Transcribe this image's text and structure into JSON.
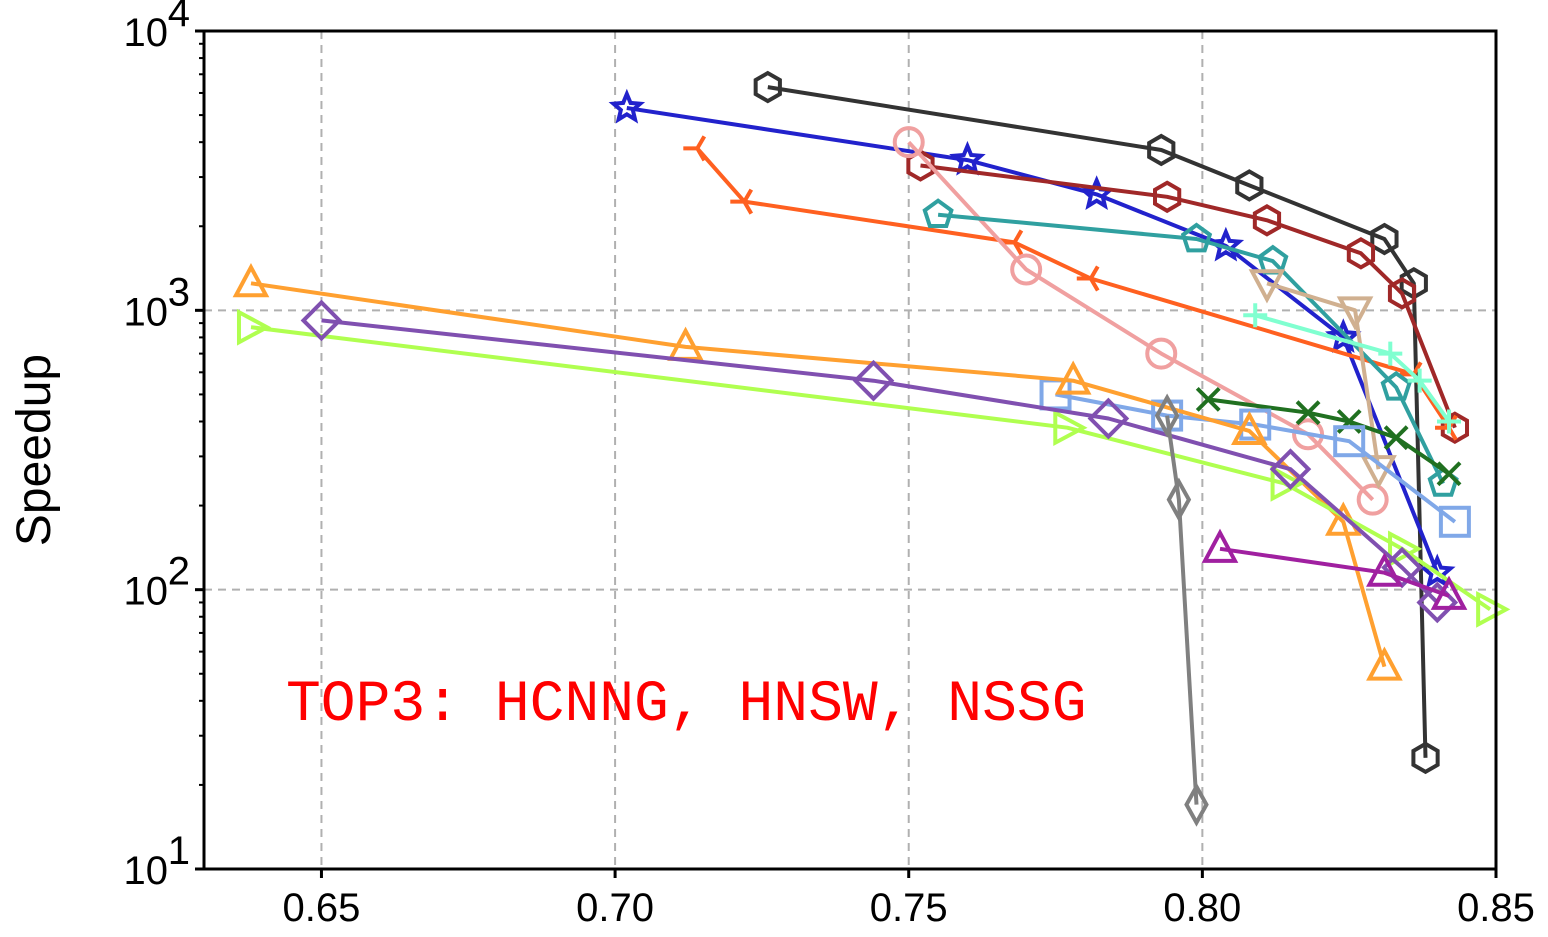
{
  "chart_data": {
    "type": "line",
    "title": "",
    "xlabel": "",
    "ylabel": "Speedup",
    "xlim": [
      0.63,
      0.85
    ],
    "ylim": [
      10,
      10000
    ],
    "yscale": "log",
    "grid": true,
    "x_ticks": [
      "0.65",
      "0.70",
      "0.75",
      "0.80",
      "0.85"
    ],
    "y_ticks": [
      {
        "base": "10",
        "exp": "1"
      },
      {
        "base": "10",
        "exp": "2"
      },
      {
        "base": "10",
        "exp": "3"
      },
      {
        "base": "10",
        "exp": "4"
      }
    ],
    "annotation": {
      "text": "TOP3: HCNNG, HNSW, NSSG",
      "color": "#ff0000"
    },
    "series": [
      {
        "marker": "hexagon",
        "color": "#333333",
        "points": [
          [
            0.726,
            6300
          ],
          [
            0.793,
            3750
          ],
          [
            0.808,
            2800
          ],
          [
            0.831,
            1800
          ],
          [
            0.836,
            1250
          ],
          [
            0.838,
            25
          ]
        ]
      },
      {
        "marker": "star",
        "color": "#2222cc",
        "points": [
          [
            0.702,
            5300
          ],
          [
            0.76,
            3450
          ],
          [
            0.782,
            2600
          ],
          [
            0.804,
            1700
          ],
          [
            0.824,
            800
          ],
          [
            0.84,
            115
          ]
        ]
      },
      {
        "marker": "hexagon",
        "color": "#a02828",
        "points": [
          [
            0.752,
            3300
          ],
          [
            0.794,
            2550
          ],
          [
            0.811,
            2100
          ],
          [
            0.827,
            1600
          ],
          [
            0.834,
            1150
          ],
          [
            0.843,
            380
          ]
        ]
      },
      {
        "marker": "tri_left",
        "color": "#ff6020",
        "points": [
          [
            0.714,
            3800
          ],
          [
            0.722,
            2450
          ],
          [
            0.768,
            1750
          ],
          [
            0.781,
            1300
          ],
          [
            0.836,
            590
          ],
          [
            0.842,
            380
          ]
        ]
      },
      {
        "marker": "circle",
        "color": "#f0a0a0",
        "points": [
          [
            0.75,
            4000
          ],
          [
            0.77,
            1400
          ],
          [
            0.793,
            700
          ],
          [
            0.818,
            360
          ],
          [
            0.829,
            210
          ]
        ]
      },
      {
        "marker": "pentagon",
        "color": "#30a0a0",
        "points": [
          [
            0.755,
            2200
          ],
          [
            0.799,
            1800
          ],
          [
            0.812,
            1500
          ],
          [
            0.833,
            530
          ],
          [
            0.841,
            240
          ]
        ]
      },
      {
        "marker": "triangle_down",
        "color": "#d0b090",
        "points": [
          [
            0.811,
            1250
          ],
          [
            0.826,
            1000
          ],
          [
            0.83,
            270
          ]
        ]
      },
      {
        "marker": "plus",
        "color": "#80ffd0",
        "points": [
          [
            0.809,
            960
          ],
          [
            0.832,
            700
          ],
          [
            0.837,
            560
          ],
          [
            0.842,
            400
          ]
        ]
      },
      {
        "marker": "x",
        "color": "#207020",
        "points": [
          [
            0.801,
            480
          ],
          [
            0.818,
            430
          ],
          [
            0.825,
            400
          ],
          [
            0.833,
            350
          ],
          [
            0.842,
            260
          ]
        ]
      },
      {
        "marker": "square",
        "color": "#80a8e8",
        "points": [
          [
            0.775,
            500
          ],
          [
            0.794,
            420
          ],
          [
            0.809,
            390
          ],
          [
            0.825,
            340
          ],
          [
            0.843,
            175
          ]
        ]
      },
      {
        "marker": "triangle_up",
        "color": "#ffa030",
        "points": [
          [
            0.638,
            1250
          ],
          [
            0.712,
            740
          ],
          [
            0.778,
            560
          ],
          [
            0.808,
            370
          ],
          [
            0.824,
            175
          ],
          [
            0.831,
            53
          ]
        ]
      },
      {
        "marker": "triangle_right",
        "color": "#b0ff50",
        "points": [
          [
            0.638,
            870
          ],
          [
            0.777,
            380
          ],
          [
            0.814,
            240
          ],
          [
            0.834,
            140
          ],
          [
            0.849,
            85
          ]
        ]
      },
      {
        "marker": "diamond",
        "color": "#8050b0",
        "points": [
          [
            0.65,
            920
          ],
          [
            0.744,
            560
          ],
          [
            0.784,
            410
          ],
          [
            0.815,
            270
          ],
          [
            0.834,
            120
          ],
          [
            0.84,
            90
          ]
        ]
      },
      {
        "marker": "triangle_up",
        "color": "#a020a0",
        "points": [
          [
            0.803,
            140
          ],
          [
            0.831,
            115
          ],
          [
            0.842,
            95
          ]
        ]
      },
      {
        "marker": "thin_diamond",
        "color": "#808080",
        "points": [
          [
            0.794,
            420
          ],
          [
            0.796,
            210
          ],
          [
            0.799,
            17
          ]
        ]
      }
    ]
  }
}
